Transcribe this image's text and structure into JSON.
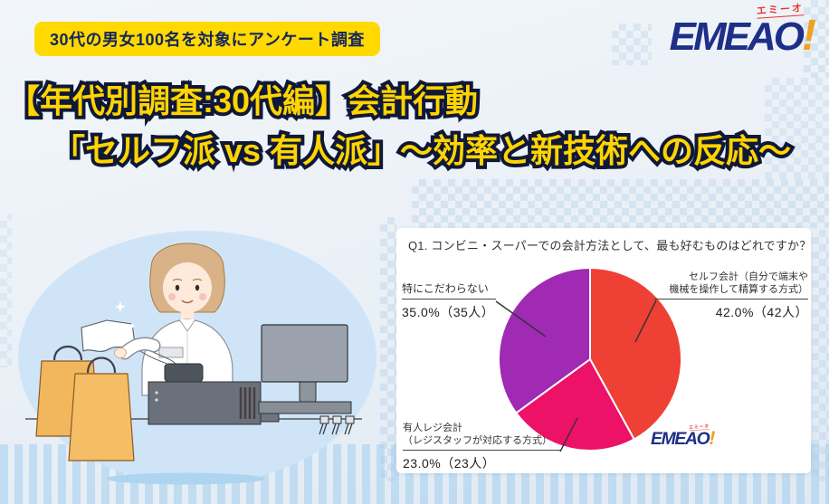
{
  "badge": {
    "text": "30代の男女100名を対象にアンケート調査"
  },
  "logo": {
    "word": "EMEAO",
    "exclamation": "!",
    "kana": "エミーオ"
  },
  "title": {
    "line1": "【年代別調査:30代編】会計行動",
    "line2": "「セルフ派 vs 有人派」～効率と新技術への反応～"
  },
  "chart_data": {
    "type": "pie",
    "title": "Q1. コンビニ・スーパーでの会計方法として、最も好むものはどれですか？",
    "total_respondents": 100,
    "start_angle_deg": 0,
    "direction": "clockwise",
    "legend_position": "callout-labels",
    "slices": [
      {
        "label": "セルフ会計（自分で端末や機械を操作して精算する方式）",
        "label_line1": "セルフ会計（自分で端末や",
        "label_line2": "機械を操作して精算する方式）",
        "pct": 42.0,
        "count": 42,
        "display": "42.0%（42人）",
        "color": "#EE4034"
      },
      {
        "label": "有人レジ会計（レジスタッフが対応する方式）",
        "label_line1": "有人レジ会計",
        "label_line2": "（レジスタッフが対応する方式）",
        "pct": 23.0,
        "count": 23,
        "display": "23.0%（23人）",
        "color": "#ED1168"
      },
      {
        "label": "特にこだわらない",
        "label_line1": "特にこだわらない",
        "label_line2": "",
        "pct": 35.0,
        "count": 35,
        "display": "35.0%（35人）",
        "color": "#A02AB4"
      }
    ]
  },
  "colors": {
    "badge_bg": "#FFD900",
    "title_fill": "#FFD400",
    "title_outline": "#101838",
    "logo_navy": "#1e2f87",
    "logo_orange": "#f0a21e",
    "logo_kana_red": "#e8362c"
  }
}
